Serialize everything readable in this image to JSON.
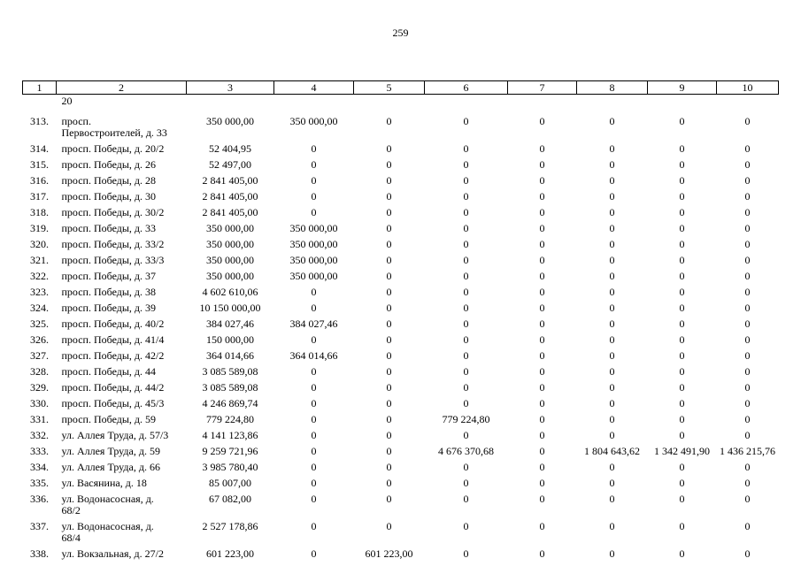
{
  "page": {
    "number": "259"
  },
  "table": {
    "header": [
      "1",
      "2",
      "3",
      "4",
      "5",
      "6",
      "7",
      "8",
      "9",
      "10"
    ],
    "continuation": "20",
    "rows": [
      {
        "num": "313.",
        "address": "просп.\nПервостроителей, д. 33",
        "values": [
          "350 000,00",
          "350 000,00",
          "0",
          "0",
          "0",
          "0",
          "0",
          "0"
        ]
      },
      {
        "num": "314.",
        "address": "просп. Победы, д. 20/2",
        "values": [
          "52 404,95",
          "0",
          "0",
          "0",
          "0",
          "0",
          "0",
          "0"
        ]
      },
      {
        "num": "315.",
        "address": "просп. Победы, д. 26",
        "values": [
          "52 497,00",
          "0",
          "0",
          "0",
          "0",
          "0",
          "0",
          "0"
        ]
      },
      {
        "num": "316.",
        "address": "просп. Победы, д. 28",
        "values": [
          "2 841 405,00",
          "0",
          "0",
          "0",
          "0",
          "0",
          "0",
          "0"
        ]
      },
      {
        "num": "317.",
        "address": "просп. Победы, д. 30",
        "values": [
          "2 841 405,00",
          "0",
          "0",
          "0",
          "0",
          "0",
          "0",
          "0"
        ]
      },
      {
        "num": "318.",
        "address": "просп. Победы, д. 30/2",
        "values": [
          "2 841 405,00",
          "0",
          "0",
          "0",
          "0",
          "0",
          "0",
          "0"
        ]
      },
      {
        "num": "319.",
        "address": "просп. Победы, д. 33",
        "values": [
          "350 000,00",
          "350 000,00",
          "0",
          "0",
          "0",
          "0",
          "0",
          "0"
        ]
      },
      {
        "num": "320.",
        "address": "просп. Победы, д. 33/2",
        "values": [
          "350 000,00",
          "350 000,00",
          "0",
          "0",
          "0",
          "0",
          "0",
          "0"
        ]
      },
      {
        "num": "321.",
        "address": "просп. Победы, д. 33/3",
        "values": [
          "350 000,00",
          "350 000,00",
          "0",
          "0",
          "0",
          "0",
          "0",
          "0"
        ]
      },
      {
        "num": "322.",
        "address": "просп. Победы, д. 37",
        "values": [
          "350 000,00",
          "350 000,00",
          "0",
          "0",
          "0",
          "0",
          "0",
          "0"
        ]
      },
      {
        "num": "323.",
        "address": "просп. Победы, д. 38",
        "values": [
          "4 602 610,06",
          "0",
          "0",
          "0",
          "0",
          "0",
          "0",
          "0"
        ]
      },
      {
        "num": "324.",
        "address": "просп. Победы, д. 39",
        "values": [
          "10 150 000,00",
          "0",
          "0",
          "0",
          "0",
          "0",
          "0",
          "0"
        ]
      },
      {
        "num": "325.",
        "address": "просп. Победы, д. 40/2",
        "values": [
          "384 027,46",
          "384 027,46",
          "0",
          "0",
          "0",
          "0",
          "0",
          "0"
        ]
      },
      {
        "num": "326.",
        "address": "просп. Победы, д. 41/4",
        "values": [
          "150 000,00",
          "0",
          "0",
          "0",
          "0",
          "0",
          "0",
          "0"
        ]
      },
      {
        "num": "327.",
        "address": "просп. Победы, д. 42/2",
        "values": [
          "364 014,66",
          "364 014,66",
          "0",
          "0",
          "0",
          "0",
          "0",
          "0"
        ]
      },
      {
        "num": "328.",
        "address": "просп. Победы, д. 44",
        "values": [
          "3 085 589,08",
          "0",
          "0",
          "0",
          "0",
          "0",
          "0",
          "0"
        ]
      },
      {
        "num": "329.",
        "address": "просп. Победы, д. 44/2",
        "values": [
          "3 085 589,08",
          "0",
          "0",
          "0",
          "0",
          "0",
          "0",
          "0"
        ]
      },
      {
        "num": "330.",
        "address": "просп. Победы, д. 45/3",
        "values": [
          "4 246 869,74",
          "0",
          "0",
          "0",
          "0",
          "0",
          "0",
          "0"
        ]
      },
      {
        "num": "331.",
        "address": "просп. Победы, д. 59",
        "values": [
          "779 224,80",
          "0",
          "0",
          "779 224,80",
          "0",
          "0",
          "0",
          "0"
        ]
      },
      {
        "num": "332.",
        "address": "ул. Аллея Труда, д. 57/3",
        "values": [
          "4 141 123,86",
          "0",
          "0",
          "0",
          "0",
          "0",
          "0",
          "0"
        ]
      },
      {
        "num": "333.",
        "address": "ул. Аллея Труда, д. 59",
        "values": [
          "9 259 721,96",
          "0",
          "0",
          "4 676 370,68",
          "0",
          "1 804 643,62",
          "1 342 491,90",
          "1 436 215,76"
        ]
      },
      {
        "num": "334.",
        "address": "ул. Аллея Труда, д. 66",
        "values": [
          "3 985 780,40",
          "0",
          "0",
          "0",
          "0",
          "0",
          "0",
          "0"
        ]
      },
      {
        "num": "335.",
        "address": "ул. Васянина, д. 18",
        "values": [
          "85 007,00",
          "0",
          "0",
          "0",
          "0",
          "0",
          "0",
          "0"
        ]
      },
      {
        "num": "336.",
        "address": "ул. Водонасосная, д.\n68/2",
        "values": [
          "67 082,00",
          "0",
          "0",
          "0",
          "0",
          "0",
          "0",
          "0"
        ]
      },
      {
        "num": "337.",
        "address": "ул. Водонасосная, д.\n68/4",
        "values": [
          "2 527 178,86",
          "0",
          "0",
          "0",
          "0",
          "0",
          "0",
          "0"
        ]
      },
      {
        "num": "338.",
        "address": "ул. Вокзальная, д. 27/2",
        "values": [
          "601 223,00",
          "0",
          "601 223,00",
          "0",
          "0",
          "0",
          "0",
          "0"
        ]
      }
    ]
  }
}
